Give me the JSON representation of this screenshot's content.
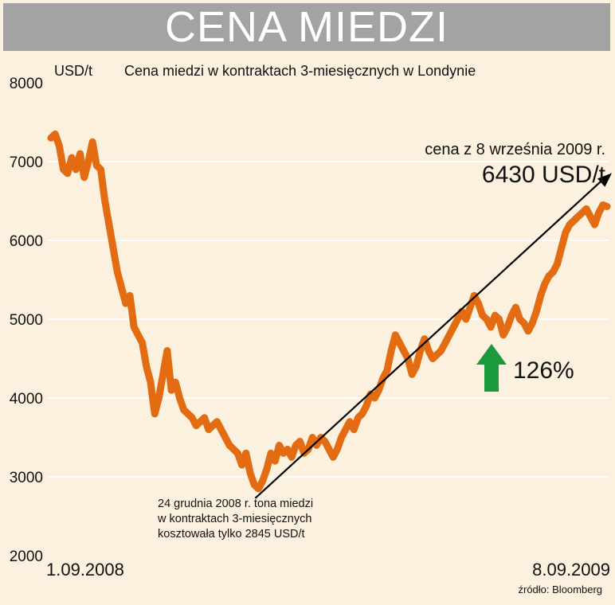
{
  "header": {
    "title": "CENA MIEDZI"
  },
  "colors": {
    "line": "#e36b12",
    "up_arrow": "#1a9a3c",
    "gridline": "#ffffff",
    "banner": "#a3a3a3"
  },
  "chart_data": {
    "type": "line",
    "unit": "USD/t",
    "subtitle": "Cena miedzi w kontraktach 3-miesięcznych w Londynie",
    "ylim": [
      2000,
      8000
    ],
    "yticks": [
      "8000",
      "7000",
      "6000",
      "5000",
      "4000",
      "3000",
      "2000"
    ],
    "grid": true,
    "x_start_label": "1.09.2008",
    "x_end_label": "8.09.2009",
    "series": [
      {
        "values": [
          7300,
          7350,
          7200,
          6900,
          6850,
          7050,
          6900,
          7100,
          6800,
          7000,
          7250,
          6950,
          6900,
          6500,
          6200,
          5900,
          5600,
          5400,
          5200,
          5300,
          4900,
          4800,
          4700,
          4400,
          4200,
          3800,
          4000,
          4300,
          4600,
          4100,
          4200,
          4000,
          3850,
          3800,
          3750,
          3650,
          3700,
          3750,
          3600,
          3650,
          3700,
          3600,
          3500,
          3400,
          3350,
          3300,
          3150,
          3300,
          3050,
          2900,
          2850,
          2950,
          3100,
          3300,
          3200,
          3400,
          3300,
          3350,
          3250,
          3400,
          3450,
          3300,
          3350,
          3500,
          3400,
          3500,
          3450,
          3350,
          3250,
          3350,
          3500,
          3600,
          3700,
          3600,
          3750,
          3800,
          3900,
          4050,
          4000,
          4100,
          4250,
          4350,
          4600,
          4800,
          4700,
          4600,
          4500,
          4300,
          4400,
          4600,
          4750,
          4600,
          4500,
          4550,
          4600,
          4700,
          4800,
          4900,
          5000,
          5100,
          5000,
          5150,
          5300,
          5200,
          5050,
          5000,
          4900,
          5050,
          5000,
          4800,
          4900,
          5050,
          5150,
          5000,
          4950,
          4850,
          4950,
          5100,
          5300,
          5450,
          5550,
          5600,
          5700,
          5900,
          6100,
          6200,
          6250,
          6300,
          6350,
          6400,
          6300,
          6200,
          6350,
          6450,
          6430
        ]
      }
    ],
    "annotations": {
      "price_note": "cena z 8 września 2009 r.",
      "price_value": "6430 USD/t",
      "low_note_lines": [
        "24 grudnia 2008 r. tona miedzi",
        "w kontraktach 3-miesięcznych",
        "kosztowała tylko 2845 USD/t"
      ],
      "gain": "126%"
    },
    "source": "źródło: Bloomberg"
  }
}
